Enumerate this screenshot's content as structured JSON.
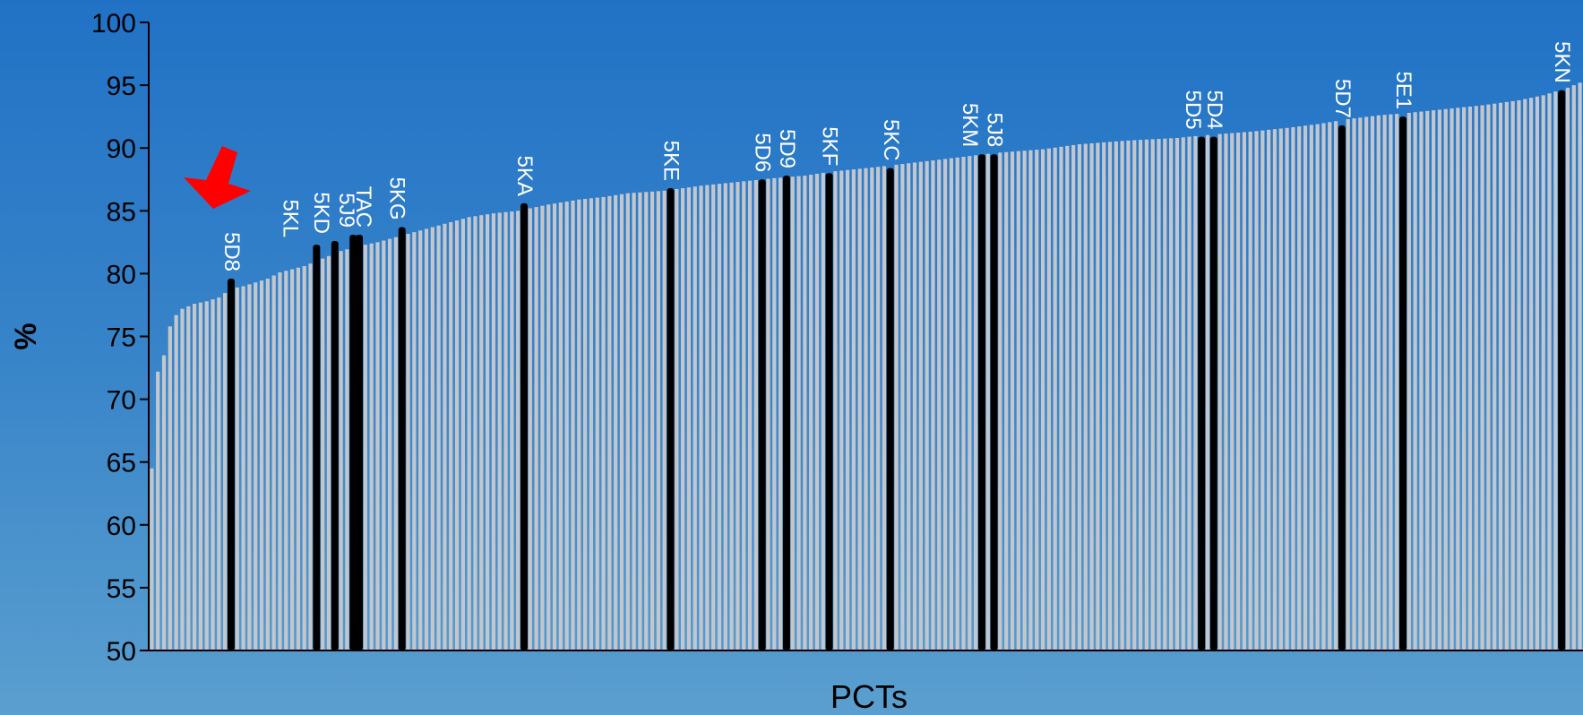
{
  "colors": {
    "bar": "#c3c7cd",
    "highlight": "#000000",
    "axis": "#000000",
    "label": "#ffffff",
    "arrow": "#ff0000"
  },
  "chart_data": {
    "type": "bar",
    "title": "",
    "xlabel": "PCTs",
    "ylabel": "%",
    "ylim": [
      50,
      100
    ],
    "yticks": [
      50,
      55,
      60,
      65,
      70,
      75,
      80,
      85,
      90,
      95,
      100
    ],
    "grid": false,
    "legend": "none",
    "n_bars": 235,
    "curve": [
      [
        0,
        64.5
      ],
      [
        1,
        72.2
      ],
      [
        2,
        73.5
      ],
      [
        3,
        75.8
      ],
      [
        4,
        76.7
      ],
      [
        5,
        77.2
      ],
      [
        7,
        77.6
      ],
      [
        9,
        77.8
      ],
      [
        11,
        78.1
      ],
      [
        13,
        78.8
      ],
      [
        15,
        79.0
      ],
      [
        17,
        79.3
      ],
      [
        19,
        79.6
      ],
      [
        21,
        80.1
      ],
      [
        25,
        80.6
      ],
      [
        28,
        81.2
      ],
      [
        31,
        81.8
      ],
      [
        34,
        82.2
      ],
      [
        37,
        82.5
      ],
      [
        40,
        82.9
      ],
      [
        43,
        83.3
      ],
      [
        46,
        83.7
      ],
      [
        49,
        84.1
      ],
      [
        52,
        84.5
      ],
      [
        56,
        84.8
      ],
      [
        60,
        85.0
      ],
      [
        65,
        85.5
      ],
      [
        70,
        85.9
      ],
      [
        74,
        86.1
      ],
      [
        78,
        86.4
      ],
      [
        84,
        86.6
      ],
      [
        90,
        87.0
      ],
      [
        96,
        87.3
      ],
      [
        102,
        87.6
      ],
      [
        107,
        87.8
      ],
      [
        111,
        88.1
      ],
      [
        119,
        88.5
      ],
      [
        126,
        88.9
      ],
      [
        133,
        89.3
      ],
      [
        138,
        89.6
      ],
      [
        146,
        89.9
      ],
      [
        152,
        90.3
      ],
      [
        160,
        90.6
      ],
      [
        168,
        90.8
      ],
      [
        172,
        91.0
      ],
      [
        180,
        91.3
      ],
      [
        186,
        91.6
      ],
      [
        191,
        91.9
      ],
      [
        196,
        92.3
      ],
      [
        201,
        92.6
      ],
      [
        206,
        92.8
      ],
      [
        212,
        93.1
      ],
      [
        218,
        93.4
      ],
      [
        224,
        93.8
      ],
      [
        228,
        94.2
      ],
      [
        230,
        94.5
      ],
      [
        232,
        94.8
      ],
      [
        234,
        95.2
      ]
    ],
    "highlighted": [
      {
        "label": "5D8",
        "index": 13,
        "value": 79.6
      },
      {
        "label": "5KL",
        "index": 27,
        "value": 82.3
      },
      {
        "label": "5KD",
        "index": 30,
        "value": 82.6
      },
      {
        "label": "5J9",
        "index": 33,
        "value": 83.1
      },
      {
        "label": "TAC",
        "index": 34,
        "value": 83.1
      },
      {
        "label": "5KG",
        "index": 41,
        "value": 83.7
      },
      {
        "label": "5KA",
        "index": 61,
        "value": 85.6
      },
      {
        "label": "5KE",
        "index": 85,
        "value": 86.8
      },
      {
        "label": "5D6",
        "index": 100,
        "value": 87.5
      },
      {
        "label": "5D9",
        "index": 104,
        "value": 87.8
      },
      {
        "label": "5KF",
        "index": 111,
        "value": 88.0
      },
      {
        "label": "5KC",
        "index": 121,
        "value": 88.4
      },
      {
        "label": "5KM",
        "index": 136,
        "value": 89.5
      },
      {
        "label": "5J8",
        "index": 138,
        "value": 89.5
      },
      {
        "label": "5D5",
        "index": 172,
        "value": 90.9
      },
      {
        "label": "5D4",
        "index": 174,
        "value": 90.9
      },
      {
        "label": "5D7",
        "index": 195,
        "value": 91.8
      },
      {
        "label": "5E1",
        "index": 205,
        "value": 92.5
      },
      {
        "label": "5KN",
        "index": 231,
        "value": 94.6
      }
    ]
  }
}
